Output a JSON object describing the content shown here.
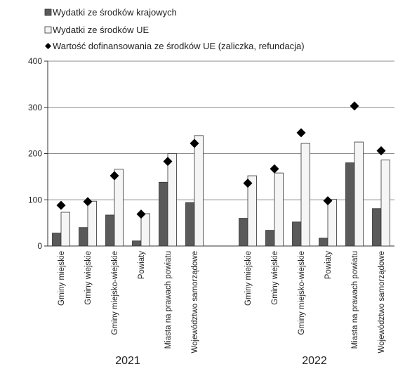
{
  "chart_data": {
    "type": "bar",
    "legend_position": "top-left",
    "grid": true,
    "ylim": [
      0,
      400
    ],
    "yticks": [
      0,
      100,
      200,
      300,
      400
    ],
    "groups": [
      {
        "label": "2021",
        "categories": [
          "Gminy miejskie",
          "Gminy wiejskie",
          "Gminy miejsko-wiejskie",
          "Powiaty",
          "Miasta na prawach powiatu",
          "Województwo samorządowe"
        ]
      },
      {
        "label": "2022",
        "categories": [
          "Gminy miejskie",
          "Gminy wiejskie",
          "Gminy miejsko-wiejskie",
          "Powiaty",
          "Miasta na prawach powiatu",
          "Województwo samorządowe"
        ]
      }
    ],
    "series": [
      {
        "name": "Wydatki ze środków krajowych",
        "kind": "bar",
        "color": "#5a5a5a",
        "values": [
          28,
          40,
          67,
          11,
          138,
          94,
          60,
          34,
          52,
          17,
          180,
          81
        ]
      },
      {
        "name": "Wydatki ze środków UE",
        "kind": "bar",
        "color": "#f5f5f5",
        "values": [
          73,
          97,
          166,
          70,
          200,
          239,
          152,
          158,
          222,
          101,
          225,
          186
        ]
      },
      {
        "name": "Wartość dofinansowania ze środków UE (zaliczka, refundacja)",
        "kind": "marker",
        "color": "#000000",
        "values": [
          88,
          96,
          152,
          69,
          183,
          222,
          136,
          167,
          245,
          98,
          303,
          206
        ]
      }
    ]
  }
}
